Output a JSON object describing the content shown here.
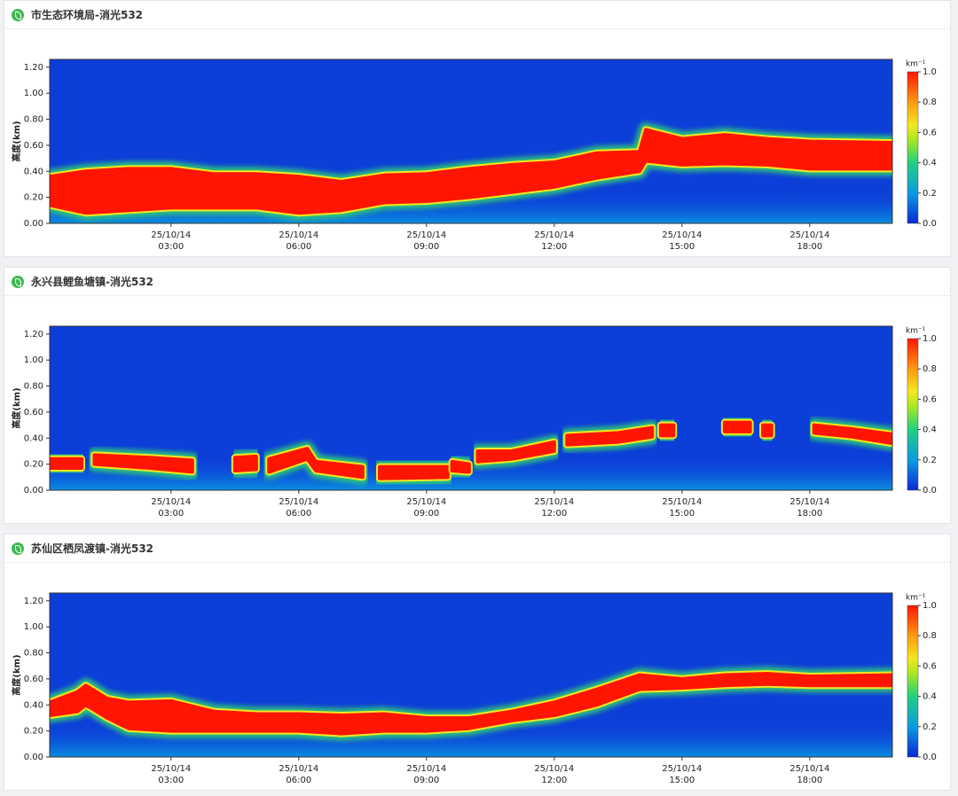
{
  "panels": [
    {
      "title": "市生态环境局-消光532",
      "chart": {
        "type": "heatmap",
        "y_label": "高度(km)",
        "xlim": [
          0.15,
          19.94
        ],
        "ylim": [
          0,
          1.26
        ],
        "xticks": [
          {
            "value": 3,
            "label": "25/10/14 03:00"
          },
          {
            "value": 6,
            "label": "25/10/14 06:00"
          },
          {
            "value": 9,
            "label": "25/10/14 09:00"
          },
          {
            "value": 12,
            "label": "25/10/14 12:00"
          },
          {
            "value": 15,
            "label": "25/10/14 15:00"
          },
          {
            "value": 18,
            "label": "25/10/14 18:00"
          }
        ],
        "yticks": [
          {
            "value": 0,
            "label": "0.00"
          },
          {
            "value": 0.2,
            "label": "0.20"
          },
          {
            "value": 0.4,
            "label": "0.40"
          },
          {
            "value": 0.6,
            "label": "0.60"
          },
          {
            "value": 0.8,
            "label": "0.80"
          },
          {
            "value": 1,
            "label": "1.00"
          },
          {
            "value": 1.2,
            "label": "1.20"
          }
        ],
        "colorbar": {
          "unit": "km⁻¹",
          "lim": [
            0,
            1
          ],
          "ticks": [
            {
              "value": 0,
              "label": "0.0"
            },
            0.2,
            0.4,
            0.6,
            0.8,
            {
              "value": 1,
              "label": "1.0"
            }
          ]
        },
        "x": [
          0.15,
          1,
          2,
          3,
          4,
          5,
          6,
          7,
          8,
          9,
          10,
          11,
          12,
          13,
          14,
          14.15,
          15,
          16,
          17,
          18,
          19.94
        ],
        "layer_top": [
          0.36,
          0.4,
          0.42,
          0.42,
          0.38,
          0.38,
          0.36,
          0.32,
          0.37,
          0.38,
          0.42,
          0.45,
          0.47,
          0.54,
          0.55,
          0.72,
          0.65,
          0.68,
          0.65,
          0.63,
          0.62
        ],
        "layer_bottom": [
          0.14,
          0.08,
          0.1,
          0.12,
          0.12,
          0.12,
          0.08,
          0.1,
          0.16,
          0.17,
          0.2,
          0.24,
          0.28,
          0.35,
          0.4,
          0.48,
          0.45,
          0.46,
          0.45,
          0.42,
          0.42
        ]
      }
    },
    {
      "title": "永兴县鲤鱼塘镇-消光532",
      "chart": {
        "type": "heatmap",
        "y_label": "高度(km)",
        "xlim": [
          0.15,
          19.94
        ],
        "ylim": [
          0,
          1.26
        ],
        "xticks": [
          {
            "value": 3,
            "label": "25/10/14 03:00"
          },
          {
            "value": 6,
            "label": "25/10/14 06:00"
          },
          {
            "value": 9,
            "label": "25/10/14 09:00"
          },
          {
            "value": 12,
            "label": "25/10/14 12:00"
          },
          {
            "value": 15,
            "label": "25/10/14 15:00"
          },
          {
            "value": 18,
            "label": "25/10/14 18:00"
          }
        ],
        "yticks": [
          {
            "value": 0,
            "label": "0.00"
          },
          {
            "value": 0.2,
            "label": "0.20"
          },
          {
            "value": 0.4,
            "label": "0.40"
          },
          {
            "value": 0.6,
            "label": "0.60"
          },
          {
            "value": 0.8,
            "label": "0.80"
          },
          {
            "value": 1,
            "label": "1.00"
          },
          {
            "value": 1.2,
            "label": "1.20"
          }
        ],
        "colorbar": {
          "unit": "km⁻¹",
          "lim": [
            0,
            1
          ],
          "ticks": [
            {
              "value": 0,
              "label": "0.0"
            },
            0.2,
            0.4,
            0.6,
            0.8,
            {
              "value": 1,
              "label": "1.0"
            }
          ]
        },
        "x": [
          0.15,
          0.9,
          null,
          1.2,
          2.5,
          3.5,
          null,
          4.5,
          5,
          null,
          5.3,
          6.2,
          6.4,
          7.5,
          null,
          7.9,
          9.5,
          null,
          9.6,
          10,
          null,
          10.2,
          11,
          12,
          null,
          12.3,
          13.5,
          14.3,
          null,
          14.5,
          14.8,
          null,
          16,
          16.6,
          null,
          16.9,
          17.1,
          null,
          18.1,
          19,
          19.94
        ],
        "layer_top": [
          0.24,
          0.24,
          null,
          0.27,
          0.25,
          0.23,
          null,
          0.25,
          0.26,
          null,
          0.24,
          0.32,
          0.22,
          0.18,
          null,
          0.18,
          0.18,
          null,
          0.22,
          0.2,
          null,
          0.3,
          0.3,
          0.37,
          null,
          0.42,
          0.44,
          0.48,
          null,
          0.5,
          0.5,
          null,
          0.52,
          0.52,
          null,
          0.5,
          0.5,
          null,
          0.5,
          0.47,
          0.43
        ],
        "layer_bottom": [
          0.17,
          0.17,
          null,
          0.2,
          0.17,
          0.14,
          null,
          0.15,
          0.16,
          null,
          0.14,
          0.24,
          0.15,
          0.1,
          null,
          0.09,
          0.1,
          null,
          0.15,
          0.14,
          null,
          0.22,
          0.24,
          0.3,
          null,
          0.35,
          0.37,
          0.41,
          null,
          0.42,
          0.42,
          null,
          0.45,
          0.45,
          null,
          0.42,
          0.42,
          null,
          0.44,
          0.41,
          0.36
        ]
      }
    },
    {
      "title": "苏仙区栖凤渡镇-消光532",
      "chart": {
        "type": "heatmap",
        "y_label": "高度(km)",
        "xlim": [
          0.15,
          19.94
        ],
        "ylim": [
          0,
          1.26
        ],
        "xticks": [
          {
            "value": 3,
            "label": "25/10/14 03:00"
          },
          {
            "value": 6,
            "label": "25/10/14 06:00"
          },
          {
            "value": 9,
            "label": "25/10/14 09:00"
          },
          {
            "value": 12,
            "label": "25/10/14 12:00"
          },
          {
            "value": 15,
            "label": "25/10/14 15:00"
          },
          {
            "value": 18,
            "label": "25/10/14 18:00"
          }
        ],
        "yticks": [
          {
            "value": 0,
            "label": "0.00"
          },
          {
            "value": 0.2,
            "label": "0.20"
          },
          {
            "value": 0.4,
            "label": "0.40"
          },
          {
            "value": 0.6,
            "label": "0.60"
          },
          {
            "value": 0.8,
            "label": "0.80"
          },
          {
            "value": 1,
            "label": "1.00"
          },
          {
            "value": 1.2,
            "label": "1.20"
          }
        ],
        "colorbar": {
          "unit": "km⁻¹",
          "lim": [
            0,
            1
          ],
          "ticks": [
            {
              "value": 0,
              "label": "0.0"
            },
            0.2,
            0.4,
            0.6,
            0.8,
            {
              "value": 1,
              "label": "1.0"
            }
          ]
        },
        "x": [
          0.15,
          0.8,
          1,
          1.5,
          2,
          3,
          4,
          5,
          6,
          7,
          8,
          9,
          10,
          11,
          12,
          13,
          14,
          15,
          16,
          17,
          18,
          19.94
        ],
        "layer_top": [
          0.42,
          0.5,
          0.55,
          0.45,
          0.42,
          0.43,
          0.35,
          0.33,
          0.33,
          0.32,
          0.33,
          0.3,
          0.3,
          0.35,
          0.42,
          0.52,
          0.63,
          0.6,
          0.63,
          0.64,
          0.62,
          0.63
        ],
        "layer_bottom": [
          0.32,
          0.35,
          0.4,
          0.3,
          0.22,
          0.2,
          0.2,
          0.2,
          0.2,
          0.18,
          0.2,
          0.2,
          0.22,
          0.28,
          0.32,
          0.4,
          0.52,
          0.53,
          0.55,
          0.56,
          0.55,
          0.55
        ]
      }
    }
  ]
}
